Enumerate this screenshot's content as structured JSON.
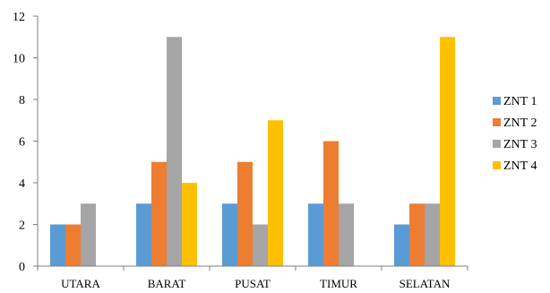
{
  "chart_data": {
    "type": "bar",
    "categories": [
      "UTARA",
      "BARAT",
      "PUSAT",
      "TIMUR",
      "SELATAN"
    ],
    "series": [
      {
        "name": "ZNT 1",
        "color": "#5B9BD5",
        "values": [
          2,
          3,
          3,
          3,
          2
        ]
      },
      {
        "name": "ZNT 2",
        "color": "#ED7D31",
        "values": [
          2,
          5,
          5,
          6,
          3
        ]
      },
      {
        "name": "ZNT 3",
        "color": "#A5A5A5",
        "values": [
          3,
          11,
          2,
          3,
          3
        ]
      },
      {
        "name": "ZNT 4",
        "color": "#FFC000",
        "values": [
          0,
          4,
          7,
          0,
          11
        ]
      }
    ],
    "ylim": [
      0,
      12
    ],
    "yticks": [
      0,
      2,
      4,
      6,
      8,
      10,
      12
    ],
    "grid": false,
    "legend": "right",
    "title": "",
    "xlabel": "",
    "ylabel": ""
  }
}
